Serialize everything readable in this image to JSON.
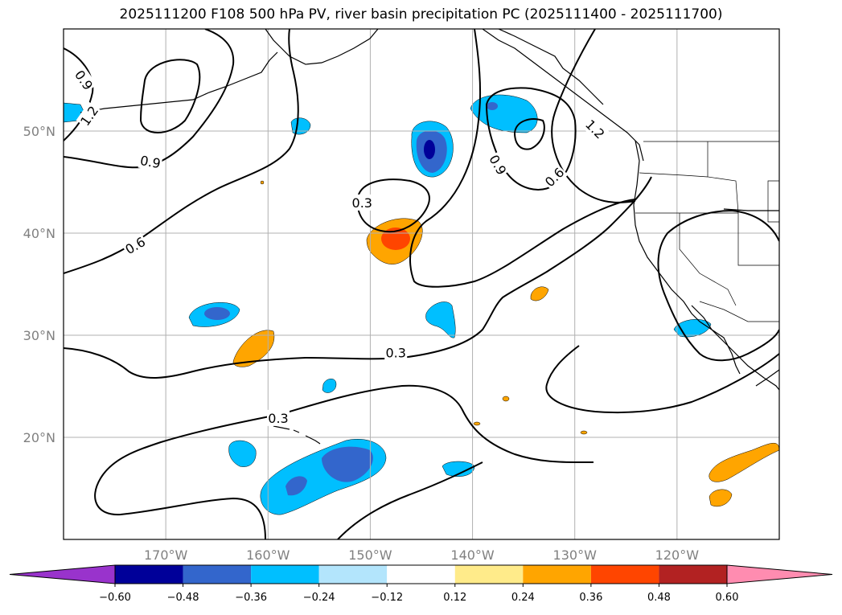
{
  "title": "2025111200 F108 500 hPa PV, river basin precipitation PC (2025111400 - 2025111700)",
  "map": {
    "lon_range": [
      -180,
      -110
    ],
    "lat_range": [
      10,
      60
    ],
    "lat_ticks": [
      {
        "lat": 50,
        "label": "50°N"
      },
      {
        "lat": 40,
        "label": "40°N"
      },
      {
        "lat": 30,
        "label": "30°N"
      },
      {
        "lat": 20,
        "label": "20°N"
      }
    ],
    "lon_ticks": [
      {
        "lon": -170,
        "label": "170°W"
      },
      {
        "lon": -160,
        "label": "160°W"
      },
      {
        "lon": -150,
        "label": "150°W"
      },
      {
        "lon": -140,
        "label": "140°W"
      },
      {
        "lon": -130,
        "label": "130°W"
      },
      {
        "lon": -120,
        "label": "120°W"
      }
    ],
    "grid": true,
    "contour_labels": [
      {
        "text": "0.9",
        "lon": -178.0,
        "lat": 55.0,
        "rot": 55
      },
      {
        "text": "1.2",
        "lon": -177.5,
        "lat": 51.5,
        "rot": -55
      },
      {
        "text": "1.2",
        "lon": -128.0,
        "lat": 50.2,
        "rot": 45
      },
      {
        "text": "0.9",
        "lon": -171.5,
        "lat": 47.0,
        "rot": 10
      },
      {
        "text": "0.9",
        "lon": -137.5,
        "lat": 46.7,
        "rot": 60
      },
      {
        "text": "0.6",
        "lon": -132.0,
        "lat": 45.5,
        "rot": -45
      },
      {
        "text": "0.3",
        "lon": -150.8,
        "lat": 43.0,
        "rot": 0
      },
      {
        "text": "0.6",
        "lon": -173.0,
        "lat": 38.8,
        "rot": -30
      },
      {
        "text": "0.3",
        "lon": -147.5,
        "lat": 28.3,
        "rot": 0
      },
      {
        "text": "0.3",
        "lon": -159.0,
        "lat": 21.9,
        "rot": 0
      }
    ]
  },
  "colorbar": {
    "colors": [
      "#9933cc",
      "#000099",
      "#3366cc",
      "#00bfff",
      "#b3e5fc",
      "#ffffff",
      "#ffeb8a",
      "#ffa500",
      "#ff4500",
      "#b22222",
      "#ff8cb0"
    ],
    "tick_values": [
      "−0.60",
      "−0.48",
      "−0.36",
      "−0.24",
      "−0.12",
      "0.12",
      "0.24",
      "0.36",
      "0.48",
      "0.60"
    ]
  },
  "colors": {
    "land_line": "#000000",
    "grid": "#b0b0b0",
    "tick_text": "#808080"
  }
}
